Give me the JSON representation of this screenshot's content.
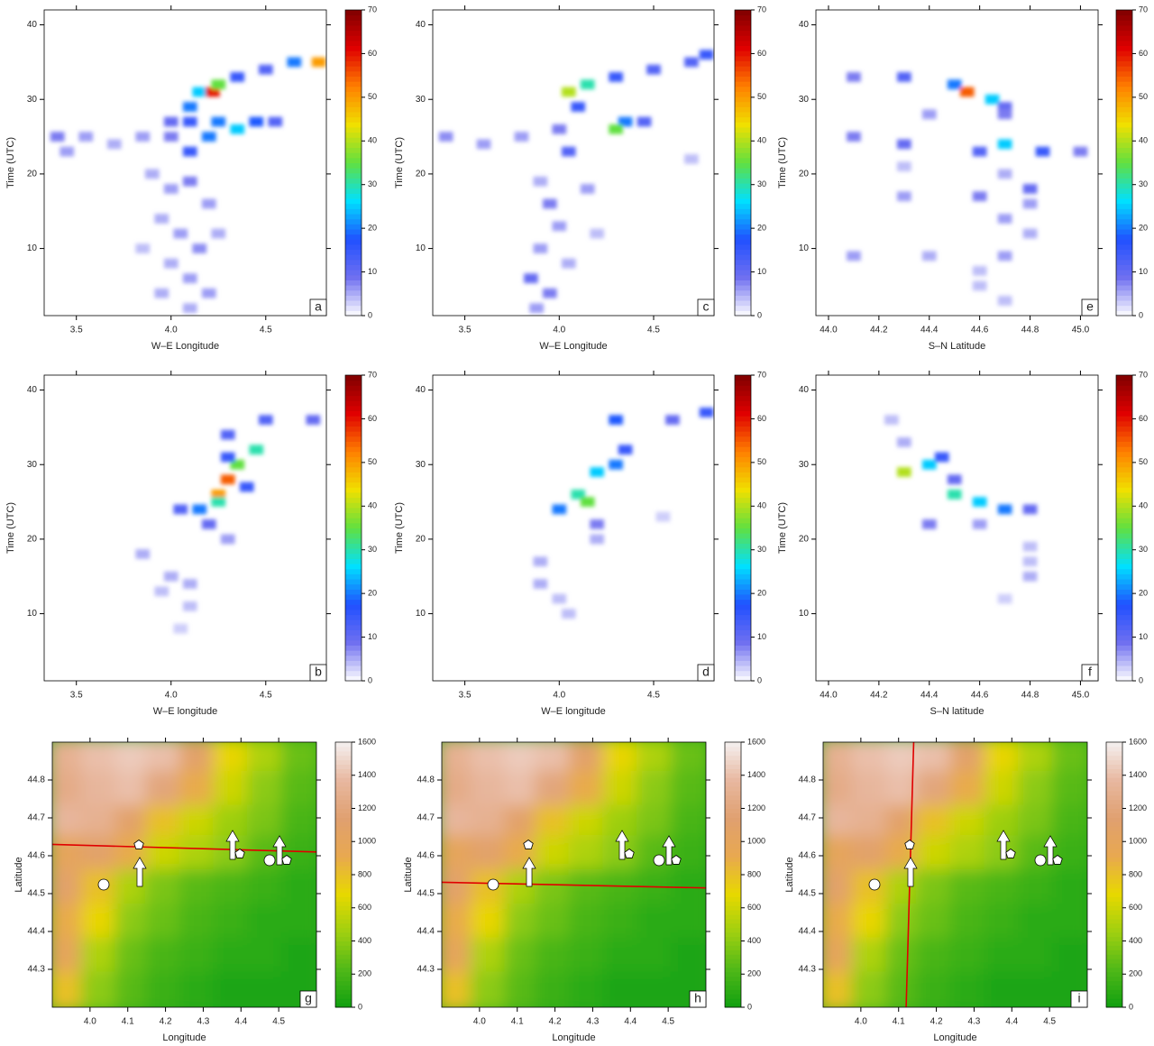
{
  "chart_data": [
    {
      "type": "heatmap",
      "label": "a",
      "x_label": "W–E Longitude",
      "y_label": "Time (UTC)",
      "xlim": [
        3.33,
        4.82
      ],
      "ylim": [
        1,
        42
      ],
      "xticks": [
        3.5,
        {
          "value": 4,
          "label": "4.0"
        },
        4.5
      ],
      "yticks": [
        10,
        20,
        30,
        40
      ],
      "colorbar_lim": [
        0,
        70
      ],
      "colorbar_ticks": [
        0,
        10,
        20,
        30,
        40,
        50,
        60,
        70
      ],
      "colormap": [
        "#ffffff",
        "#7070f0",
        "#2050ff",
        "#00e0ff",
        "#60e040",
        "#f0e000",
        "#ff8000",
        "#e00000",
        "#800000"
      ],
      "x": [
        3.4,
        3.55,
        3.7,
        3.85,
        4.0,
        4.1,
        4.15,
        4.22,
        4.25,
        4.35,
        4.5,
        4.65,
        4.78,
        4.0,
        4.1,
        4.25,
        4.35,
        4.45,
        4.55,
        4.2,
        4.1,
        3.9,
        4.0,
        4.1,
        4.2,
        3.95,
        4.05,
        4.15,
        4.0,
        4.1,
        3.95,
        4.2,
        4.1,
        4.25,
        3.85,
        3.45
      ],
      "y": [
        25,
        25,
        24,
        25,
        25,
        29,
        31,
        31,
        32,
        33,
        34,
        35,
        35,
        27,
        27,
        27,
        26,
        27,
        27,
        25,
        23,
        20,
        18,
        19,
        16,
        14,
        12,
        10,
        8,
        6,
        4,
        4,
        2,
        12,
        10,
        23
      ],
      "values": [
        8,
        6,
        5,
        6,
        8,
        20,
        25,
        60,
        35,
        15,
        12,
        20,
        50,
        10,
        15,
        20,
        25,
        18,
        12,
        20,
        15,
        5,
        6,
        8,
        6,
        5,
        6,
        7,
        5,
        6,
        5,
        6,
        5,
        5,
        4,
        6
      ]
    },
    {
      "type": "heatmap",
      "label": "c",
      "x_label": "W–E Longitude",
      "y_label": "Time (UTC)",
      "xlim": [
        3.33,
        4.82
      ],
      "ylim": [
        1,
        42
      ],
      "xticks": [
        3.5,
        {
          "value": 4,
          "label": "4.0"
        },
        4.5
      ],
      "yticks": [
        10,
        20,
        30,
        40
      ],
      "colorbar_lim": [
        0,
        70
      ],
      "colorbar_ticks": [
        0,
        10,
        20,
        30,
        40,
        50,
        60,
        70
      ],
      "colormap": [
        "#ffffff",
        "#7070f0",
        "#2050ff",
        "#00e0ff",
        "#60e040",
        "#f0e000",
        "#ff8000",
        "#e00000",
        "#800000"
      ],
      "x": [
        4.05,
        4.15,
        4.3,
        4.5,
        4.7,
        4.78,
        3.4,
        3.6,
        3.8,
        4.0,
        4.1,
        4.35,
        4.3,
        4.45,
        4.05,
        3.9,
        3.95,
        4.0,
        3.9,
        3.85,
        3.95,
        4.05,
        4.15,
        3.88,
        4.2,
        4.7
      ],
      "y": [
        31,
        32,
        33,
        34,
        35,
        36,
        25,
        24,
        25,
        26,
        29,
        27,
        26,
        27,
        23,
        19,
        16,
        13,
        10,
        6,
        4,
        8,
        18,
        2,
        12,
        22
      ],
      "values": [
        40,
        30,
        15,
        12,
        12,
        15,
        7,
        6,
        6,
        8,
        15,
        20,
        35,
        12,
        12,
        5,
        8,
        6,
        6,
        10,
        8,
        5,
        6,
        6,
        4,
        4
      ]
    },
    {
      "type": "heatmap",
      "label": "e",
      "x_label": "S–N Latitude",
      "y_label": "Time (UTC)",
      "xlim": [
        43.95,
        45.07
      ],
      "ylim": [
        1,
        42
      ],
      "xticks": [
        {
          "value": 44,
          "label": "44.0"
        },
        44.2,
        44.4,
        44.6,
        44.8,
        {
          "value": 45,
          "label": "45.0"
        }
      ],
      "yticks": [
        10,
        20,
        30,
        40
      ],
      "colorbar_lim": [
        0,
        70
      ],
      "colorbar_ticks": [
        0,
        10,
        20,
        30,
        40,
        50,
        60,
        70
      ],
      "colormap": [
        "#ffffff",
        "#7070f0",
        "#2050ff",
        "#00e0ff",
        "#60e040",
        "#f0e000",
        "#ff8000",
        "#e00000",
        "#800000"
      ],
      "x": [
        44.1,
        44.3,
        44.5,
        44.55,
        44.65,
        44.7,
        44.4,
        44.7,
        44.1,
        44.3,
        44.6,
        44.7,
        44.85,
        45.0,
        44.3,
        44.7,
        44.8,
        44.6,
        44.3,
        44.8,
        44.7,
        44.8,
        44.1,
        44.4,
        44.7,
        44.6,
        44.6,
        44.7
      ],
      "y": [
        33,
        33,
        32,
        31,
        30,
        29,
        28,
        28,
        25,
        24,
        23,
        24,
        23,
        23,
        21,
        20,
        18,
        17,
        17,
        16,
        14,
        12,
        9,
        9,
        9,
        7,
        5,
        3
      ],
      "values": [
        8,
        12,
        20,
        55,
        25,
        10,
        6,
        8,
        8,
        10,
        12,
        25,
        15,
        8,
        4,
        5,
        10,
        8,
        6,
        6,
        6,
        5,
        6,
        5,
        6,
        4,
        4,
        4
      ]
    },
    {
      "type": "heatmap",
      "label": "b",
      "x_label": "W–E longitude",
      "y_label": "Time (UTC)",
      "xlim": [
        3.33,
        4.82
      ],
      "ylim": [
        1,
        42
      ],
      "xticks": [
        3.5,
        {
          "value": 4,
          "label": "4.0"
        },
        4.5
      ],
      "yticks": [
        10,
        20,
        30,
        40
      ],
      "colorbar_lim": [
        0,
        70
      ],
      "colorbar_ticks": [
        0,
        10,
        20,
        30,
        40,
        50,
        60,
        70
      ],
      "colormap": [
        "#ffffff",
        "#7070f0",
        "#2050ff",
        "#00e0ff",
        "#60e040",
        "#f0e000",
        "#ff8000",
        "#e00000",
        "#800000"
      ],
      "x": [
        4.15,
        4.25,
        4.3,
        4.35,
        4.45,
        4.5,
        4.75,
        4.3,
        4.05,
        4.2,
        4.3,
        4.25,
        3.85,
        4.0,
        4.1,
        3.95,
        4.1,
        4.05,
        4.4,
        4.3
      ],
      "y": [
        24,
        26,
        28,
        30,
        32,
        36,
        36,
        34,
        24,
        22,
        20,
        25,
        18,
        15,
        14,
        13,
        11,
        8,
        27,
        31
      ],
      "values": [
        20,
        50,
        55,
        35,
        30,
        12,
        10,
        12,
        12,
        10,
        6,
        30,
        5,
        5,
        5,
        4,
        4,
        3,
        15,
        15
      ]
    },
    {
      "type": "heatmap",
      "label": "d",
      "x_label": "W–E longitude",
      "y_label": "Time (UTC)",
      "xlim": [
        3.33,
        4.82
      ],
      "ylim": [
        1,
        42
      ],
      "xticks": [
        3.5,
        {
          "value": 4,
          "label": "4.0"
        },
        4.5
      ],
      "yticks": [
        10,
        20,
        30,
        40
      ],
      "colorbar_lim": [
        0,
        70
      ],
      "colorbar_ticks": [
        0,
        10,
        20,
        30,
        40,
        50,
        60,
        70
      ],
      "colormap": [
        "#ffffff",
        "#7070f0",
        "#2050ff",
        "#00e0ff",
        "#60e040",
        "#f0e000",
        "#ff8000",
        "#e00000",
        "#800000"
      ],
      "x": [
        4.1,
        4.2,
        4.3,
        4.35,
        4.3,
        4.6,
        4.78,
        4.0,
        4.15,
        4.2,
        4.2,
        3.9,
        3.9,
        4.0,
        4.05,
        4.55
      ],
      "y": [
        26,
        29,
        30,
        32,
        36,
        36,
        37,
        24,
        25,
        22,
        20,
        17,
        14,
        12,
        10,
        23
      ],
      "values": [
        30,
        25,
        20,
        15,
        18,
        10,
        15,
        20,
        35,
        8,
        5,
        5,
        5,
        4,
        4,
        3
      ]
    },
    {
      "type": "heatmap",
      "label": "f",
      "x_label": "S–N latitude",
      "y_label": "Time (UTC)",
      "xlim": [
        43.95,
        45.07
      ],
      "ylim": [
        1,
        42
      ],
      "xticks": [
        {
          "value": 44,
          "label": "44.0"
        },
        44.2,
        44.4,
        44.6,
        44.8,
        {
          "value": 45,
          "label": "45.0"
        }
      ],
      "yticks": [
        10,
        20,
        30,
        40
      ],
      "colorbar_lim": [
        0,
        70
      ],
      "colorbar_ticks": [
        0,
        10,
        20,
        30,
        40,
        50,
        60,
        70
      ],
      "colormap": [
        "#ffffff",
        "#7070f0",
        "#2050ff",
        "#00e0ff",
        "#60e040",
        "#f0e000",
        "#ff8000",
        "#e00000",
        "#800000"
      ],
      "x": [
        44.3,
        44.4,
        44.45,
        44.5,
        44.5,
        44.6,
        44.7,
        44.8,
        44.4,
        44.6,
        44.25,
        44.3,
        44.8,
        44.8,
        44.7,
        44.8
      ],
      "y": [
        29,
        30,
        31,
        28,
        26,
        25,
        24,
        24,
        22,
        22,
        36,
        33,
        19,
        15,
        12,
        17
      ],
      "values": [
        40,
        25,
        15,
        10,
        30,
        25,
        20,
        10,
        8,
        6,
        4,
        5,
        4,
        5,
        3,
        4
      ]
    },
    {
      "type": "map",
      "label": "g",
      "x_label": "Longitude",
      "y_label": "Latitude",
      "xlim": [
        3.9,
        4.6
      ],
      "ylim": [
        44.2,
        44.9
      ],
      "xticks": [
        {
          "value": 4,
          "label": "4.0"
        },
        4.1,
        4.2,
        4.3,
        4.4,
        4.5
      ],
      "yticks": [
        44.3,
        44.4,
        44.5,
        44.6,
        44.7,
        44.8
      ],
      "colorbar_lim": [
        0,
        1600
      ],
      "colorbar_ticks": [
        0,
        200,
        400,
        600,
        800,
        1000,
        1200,
        1400,
        1600
      ],
      "colormap": [
        "#10a010",
        "#50b818",
        "#a0d010",
        "#e8d800",
        "#e8a850",
        "#e0a070",
        "#e8b8a0",
        "#f4f0f0"
      ],
      "x": [
        3.94,
        4.03,
        4.12,
        4.2,
        4.29,
        4.38,
        4.47,
        4.56
      ],
      "y": [
        44.86,
        44.77,
        44.68,
        44.6,
        44.51,
        44.42,
        44.33,
        44.24
      ],
      "z": [
        [
          1300,
          1400,
          1450,
          1400,
          1100,
          700,
          500,
          300
        ],
        [
          1250,
          1350,
          1400,
          1200,
          900,
          600,
          400,
          250
        ],
        [
          1350,
          1300,
          1100,
          800,
          600,
          450,
          350,
          200
        ],
        [
          1000,
          1100,
          900,
          600,
          500,
          400,
          250,
          150
        ],
        [
          1100,
          800,
          500,
          350,
          250,
          200,
          150,
          100
        ],
        [
          900,
          700,
          400,
          300,
          200,
          150,
          100,
          100
        ],
        [
          1000,
          500,
          300,
          200,
          150,
          100,
          100,
          50
        ],
        [
          800,
          400,
          250,
          150,
          100,
          50,
          50,
          50
        ]
      ],
      "transect_x": [
        3.9,
        4.6
      ],
      "transect_y": [
        44.63,
        44.61
      ]
    },
    {
      "type": "map",
      "label": "h",
      "x_label": "Longitude",
      "y_label": "Latitude",
      "xlim": [
        3.9,
        4.6
      ],
      "ylim": [
        44.2,
        44.9
      ],
      "xticks": [
        {
          "value": 4,
          "label": "4.0"
        },
        4.1,
        4.2,
        4.3,
        4.4,
        4.5
      ],
      "yticks": [
        44.3,
        44.4,
        44.5,
        44.6,
        44.7,
        44.8
      ],
      "colorbar_lim": [
        0,
        1600
      ],
      "colorbar_ticks": [
        0,
        200,
        400,
        600,
        800,
        1000,
        1200,
        1400,
        1600
      ],
      "colormap": [
        "#10a010",
        "#50b818",
        "#a0d010",
        "#e8d800",
        "#e8a850",
        "#e0a070",
        "#e8b8a0",
        "#f4f0f0"
      ],
      "x": [
        3.94,
        4.03,
        4.12,
        4.2,
        4.29,
        4.38,
        4.47,
        4.56
      ],
      "y": [
        44.86,
        44.77,
        44.68,
        44.6,
        44.51,
        44.42,
        44.33,
        44.24
      ],
      "z": [
        [
          1300,
          1400,
          1450,
          1400,
          1100,
          700,
          500,
          300
        ],
        [
          1250,
          1350,
          1400,
          1200,
          900,
          600,
          400,
          250
        ],
        [
          1350,
          1300,
          1100,
          800,
          600,
          450,
          350,
          200
        ],
        [
          1000,
          1100,
          900,
          600,
          500,
          400,
          250,
          150
        ],
        [
          1100,
          800,
          500,
          350,
          250,
          200,
          150,
          100
        ],
        [
          900,
          700,
          400,
          300,
          200,
          150,
          100,
          100
        ],
        [
          1000,
          500,
          300,
          200,
          150,
          100,
          100,
          50
        ],
        [
          800,
          400,
          250,
          150,
          100,
          50,
          50,
          50
        ]
      ],
      "transect_x": [
        3.9,
        4.6
      ],
      "transect_y": [
        44.53,
        44.515
      ]
    },
    {
      "type": "map",
      "label": "i",
      "x_label": "Longitude",
      "y_label": "Latitude",
      "xlim": [
        3.9,
        4.6
      ],
      "ylim": [
        44.2,
        44.9
      ],
      "xticks": [
        {
          "value": 4,
          "label": "4.0"
        },
        4.1,
        4.2,
        4.3,
        4.4,
        4.5
      ],
      "yticks": [
        44.3,
        44.4,
        44.5,
        44.6,
        44.7,
        44.8
      ],
      "colorbar_lim": [
        0,
        1600
      ],
      "colorbar_ticks": [
        0,
        200,
        400,
        600,
        800,
        1000,
        1200,
        1400,
        1600
      ],
      "colormap": [
        "#10a010",
        "#50b818",
        "#a0d010",
        "#e8d800",
        "#e8a850",
        "#e0a070",
        "#e8b8a0",
        "#f4f0f0"
      ],
      "x": [
        3.94,
        4.03,
        4.12,
        4.2,
        4.29,
        4.38,
        4.47,
        4.56
      ],
      "y": [
        44.86,
        44.77,
        44.68,
        44.6,
        44.51,
        44.42,
        44.33,
        44.24
      ],
      "z": [
        [
          1300,
          1400,
          1450,
          1400,
          1100,
          700,
          500,
          300
        ],
        [
          1250,
          1350,
          1400,
          1200,
          900,
          600,
          400,
          250
        ],
        [
          1350,
          1300,
          1100,
          800,
          600,
          450,
          350,
          200
        ],
        [
          1000,
          1100,
          900,
          600,
          500,
          400,
          250,
          150
        ],
        [
          1100,
          800,
          500,
          350,
          250,
          200,
          150,
          100
        ],
        [
          900,
          700,
          400,
          300,
          200,
          150,
          100,
          100
        ],
        [
          1000,
          500,
          300,
          200,
          150,
          100,
          100,
          50
        ],
        [
          800,
          400,
          250,
          150,
          100,
          50,
          50,
          50
        ]
      ],
      "transect_x": [
        4.14,
        4.12
      ],
      "transect_y": [
        44.9,
        44.2
      ]
    }
  ]
}
